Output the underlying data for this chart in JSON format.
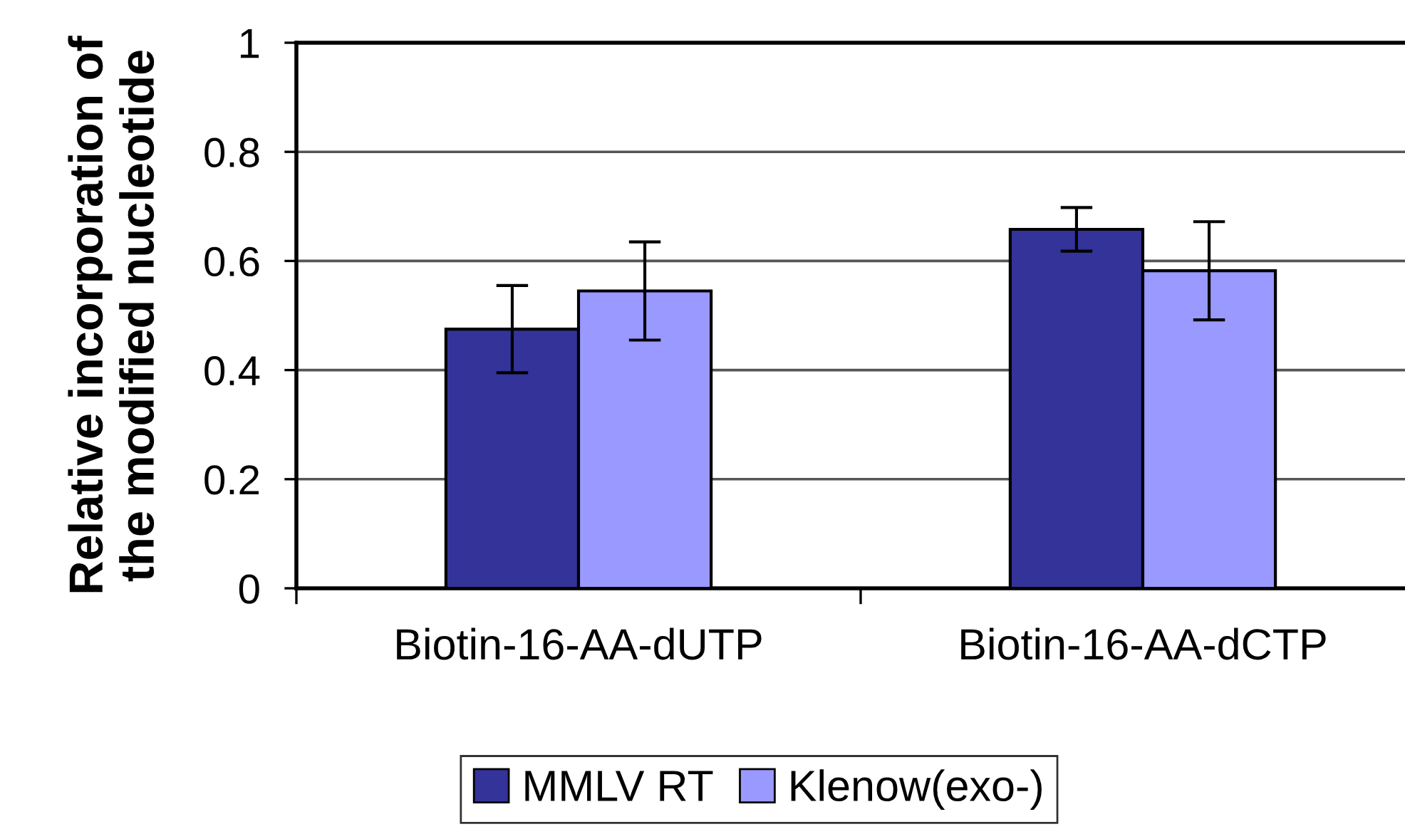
{
  "chart_data": {
    "type": "bar",
    "ylabel": "Relative incorporation of\nthe modified nucleotide",
    "categories": [
      "Biotin-16-AA-dUTP",
      "Biotin-16-AA-dCTP"
    ],
    "series": [
      {
        "name": "MMLV RT",
        "color": "#333399",
        "values": [
          0.475,
          0.658
        ],
        "errors": [
          0.08,
          0.04
        ]
      },
      {
        "name": "Klenow(exo-)",
        "color": "#9999ff",
        "values": [
          0.545,
          0.582
        ],
        "errors": [
          0.09,
          0.09
        ]
      }
    ],
    "ylim": [
      0,
      1
    ],
    "yticks": [
      0,
      0.2,
      0.4,
      0.6,
      0.8,
      1
    ],
    "grid": "y",
    "legend": "bottom"
  }
}
